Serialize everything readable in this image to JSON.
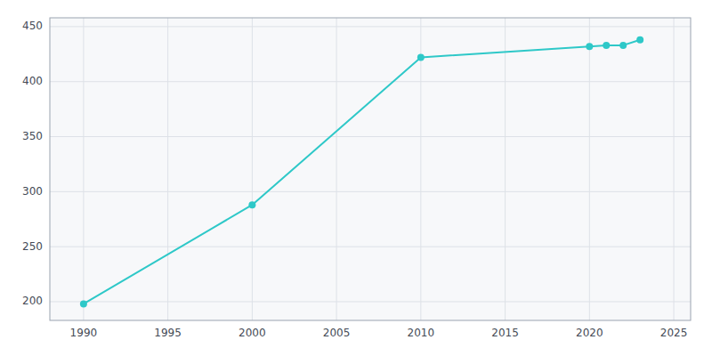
{
  "chart_data": {
    "type": "line",
    "x": [
      1990,
      2000,
      2010,
      2020,
      2021,
      2022,
      2023
    ],
    "values": [
      198,
      288,
      422,
      432,
      433,
      433,
      438
    ],
    "color": "#2ec8c8",
    "marker": "circle",
    "xlim": [
      1988,
      2026
    ],
    "ylim": [
      183,
      458
    ],
    "xticks": [
      1990,
      1995,
      2000,
      2005,
      2010,
      2015,
      2020,
      2025
    ],
    "yticks": [
      200,
      250,
      300,
      350,
      400,
      450
    ],
    "grid": true
  }
}
